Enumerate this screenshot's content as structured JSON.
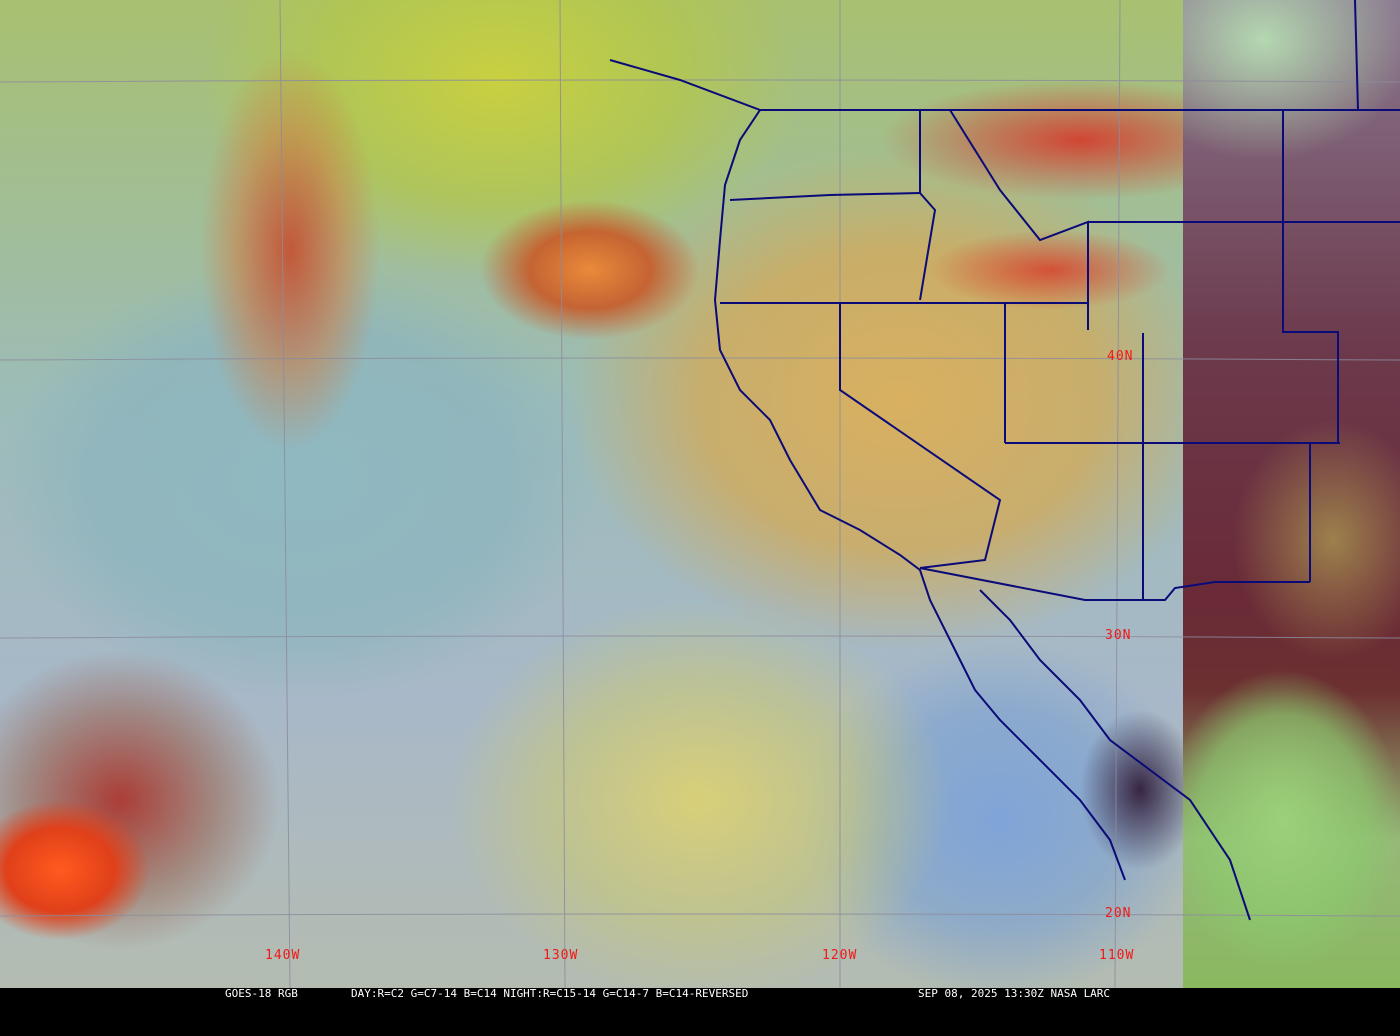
{
  "caption": {
    "satellite": "GOES-18 RGB",
    "recipe": "DAY:R=C2 G=C7-14 B=C14 NIGHT:R=C15-14 G=C14-7 B=C14-REVERSED",
    "timestamp": "SEP 08, 2025 13:30Z NASA LARC"
  },
  "grid_labels": {
    "lon": [
      "140W",
      "130W",
      "120W",
      "110W"
    ],
    "lat": [
      "40N",
      "30N",
      "20N"
    ]
  },
  "colors": {
    "grid": "#8c8c9c",
    "borders": "#0a0a78",
    "labels": "#f01818"
  }
}
